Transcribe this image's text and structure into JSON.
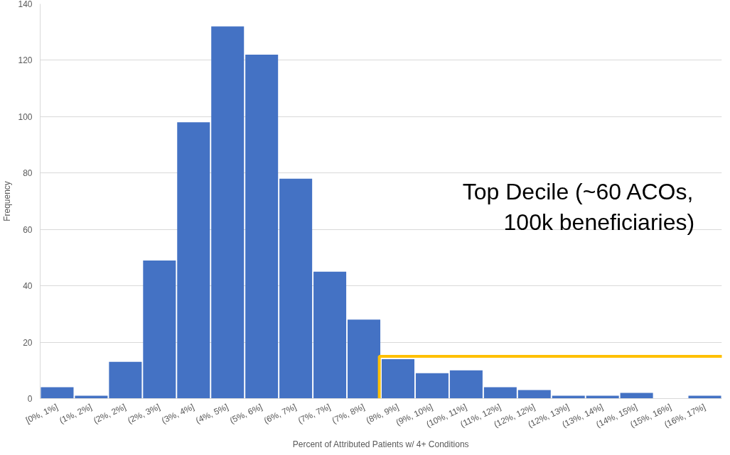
{
  "chart_data": {
    "type": "bar",
    "xlabel": "Percent of Attributed Patients w/ 4+ Conditions",
    "ylabel": "Frequency",
    "categories": [
      "[0%, 1%]",
      "(1%, 2%]",
      "(2%, 2%]",
      "(2%, 3%]",
      "(3%, 4%]",
      "(4%, 5%]",
      "(5%, 6%]",
      "(6%, 7%]",
      "(7%, 7%]",
      "(7%, 8%]",
      "(8%, 9%]",
      "(9%, 10%]",
      "(10%, 11%]",
      "(11%, 12%]",
      "(12%, 12%]",
      "(12%, 13%]",
      "(13%, 14%]",
      "(14%, 15%]",
      "(15%, 16%]",
      "(16%, 17%]"
    ],
    "values": [
      4,
      1,
      13,
      49,
      98,
      132,
      122,
      78,
      45,
      28,
      14,
      9,
      10,
      4,
      3,
      1,
      1,
      2,
      0,
      1
    ],
    "color": "#4472c4",
    "ylim": [
      0,
      140
    ],
    "yticks": [
      0,
      20,
      40,
      60,
      80,
      100,
      120,
      140
    ],
    "grid": "y",
    "annotations": [
      "Top Decile (~60 ACOs,\n100k beneficiaries)"
    ]
  }
}
